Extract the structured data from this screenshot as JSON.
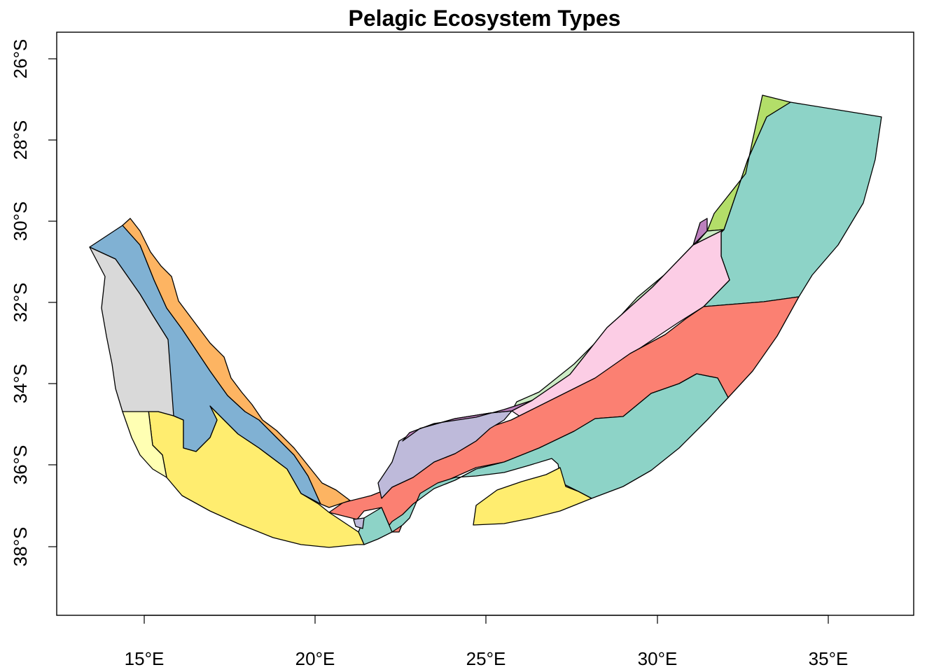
{
  "map": {
    "title": "Pelagic Ecosystem Types",
    "x_ticks": [
      "15°E",
      "20°E",
      "25°E",
      "30°E",
      "35°E"
    ],
    "y_ticks": [
      "26°S",
      "28°S",
      "30°S",
      "32°S",
      "34°S",
      "36°S",
      "38°S"
    ],
    "colors": {
      "teal": "#8DD3C7",
      "yellow": "#FFED6F",
      "pale_yellow": "#FFFFB3",
      "grey": "#D9D9D9",
      "blue": "#80B1D3",
      "orange": "#FDB462",
      "salmon": "#FB8072",
      "lavender": "#BEBADA",
      "purple": "#BC80BD",
      "pink": "#FCCDE5",
      "pale_green": "#CCEBC5",
      "lime": "#B3DE69"
    }
  }
}
